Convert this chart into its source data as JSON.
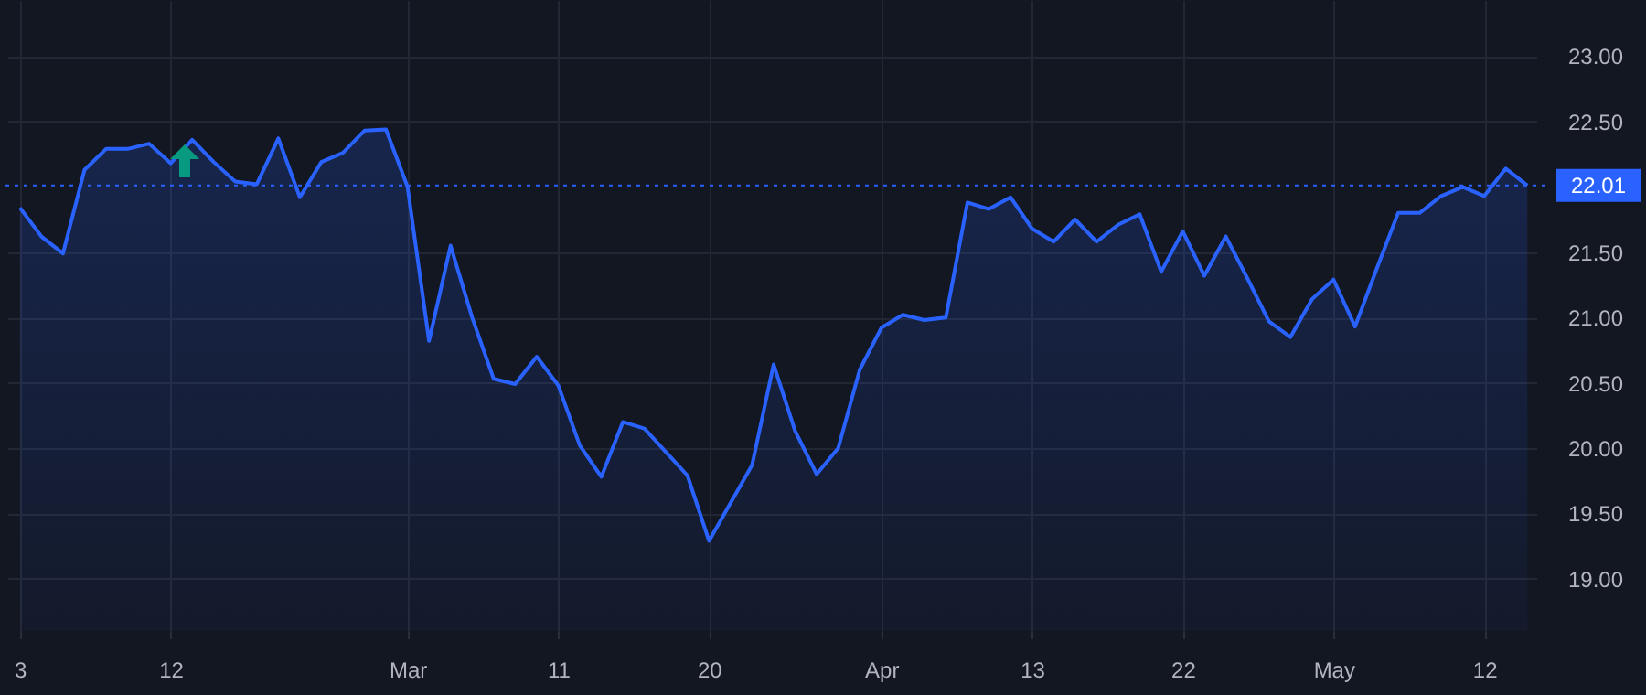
{
  "chart_data": {
    "type": "area",
    "categories": [
      "3",
      null,
      null,
      null,
      null,
      null,
      null,
      "12",
      null,
      null,
      null,
      null,
      null,
      null,
      null,
      null,
      null,
      null,
      "Mar",
      null,
      null,
      null,
      null,
      null,
      null,
      "11",
      null,
      null,
      null,
      null,
      null,
      null,
      "20",
      null,
      null,
      null,
      null,
      null,
      null,
      null,
      "Apr",
      null,
      null,
      null,
      null,
      null,
      null,
      "13",
      null,
      null,
      null,
      null,
      null,
      null,
      "22",
      null,
      null,
      null,
      null,
      null,
      null,
      "May",
      null,
      null,
      null,
      null,
      null,
      null,
      "12",
      null,
      null
    ],
    "values": [
      21.84,
      21.62,
      21.49,
      22.13,
      22.29,
      22.29,
      22.33,
      22.18,
      22.36,
      22.19,
      22.04,
      22.02,
      22.37,
      21.92,
      22.19,
      22.26,
      22.43,
      22.44,
      22.0,
      20.82,
      21.55,
      21.0,
      20.53,
      20.49,
      20.7,
      20.48,
      20.02,
      19.78,
      20.2,
      20.15,
      19.97,
      19.79,
      19.29,
      19.58,
      19.87,
      20.64,
      20.13,
      19.8,
      20.0,
      20.6,
      20.92,
      21.02,
      20.98,
      21.0,
      21.88,
      21.83,
      21.92,
      21.68,
      21.58,
      21.75,
      21.58,
      21.71,
      21.79,
      21.35,
      21.66,
      21.32,
      21.62,
      21.3,
      20.97,
      20.85,
      21.14,
      21.29,
      20.93,
      21.37,
      21.8,
      21.8,
      21.93,
      22.0,
      21.93,
      22.14,
      22.01
    ],
    "color": "#2962ff",
    "ylim": [
      18.6,
      23.43
    ],
    "yticks": [
      {
        "value": 19,
        "label": "19.00"
      },
      {
        "value": 19.5,
        "label": "19.50"
      },
      {
        "value": 20,
        "label": "20.00"
      },
      {
        "value": 20.5,
        "label": "20.50"
      },
      {
        "value": 21,
        "label": "21.00"
      },
      {
        "value": 21.5,
        "label": "21.50"
      },
      {
        "value": 22.5,
        "label": "22.50"
      },
      {
        "value": 23,
        "label": "23.00"
      }
    ],
    "grid": true,
    "ref_lines": [
      {
        "axis": "y",
        "value": 22.01,
        "label": "22.01",
        "color": "#2962ff",
        "line_style": "dotted"
      }
    ]
  }
}
